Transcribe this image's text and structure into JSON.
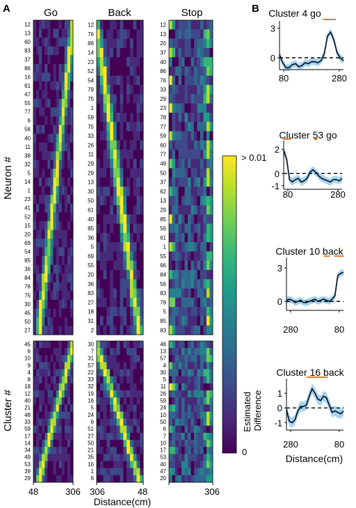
{
  "panel_labels": {
    "a": "A",
    "b": "B"
  },
  "colormap": [
    "#440154",
    "#482878",
    "#3e4989",
    "#31688e",
    "#26828e",
    "#1f9e89",
    "#35b779",
    "#6ece58",
    "#b5de2b",
    "#fde725"
  ],
  "line_color": "#0a1a2e",
  "band_color": "#8cc6e8",
  "sig_color": "#f07818",
  "chart_data": [
    {
      "type": "heatmap",
      "titles": [
        "Go",
        "Back",
        "Stop"
      ],
      "ylabel": "Neuron #",
      "neuron_rows": [
        [
          "12",
          "13",
          "60",
          "83",
          "37",
          "86",
          "16",
          "61",
          "47",
          "55",
          "77",
          "6",
          "56",
          "40",
          "11",
          "38",
          "32",
          "5",
          "14",
          "1",
          "23",
          "41",
          "52",
          "15",
          "20",
          "69",
          "54",
          "85",
          "36",
          "84",
          "78",
          "75",
          "30",
          "45",
          "50",
          "27"
        ],
        [
          "12",
          "76",
          "86",
          "14",
          "23",
          "52",
          "54",
          "79",
          "75",
          "1",
          "59",
          "75",
          "33",
          "26",
          "11",
          "29",
          "29",
          "13",
          "30",
          "50",
          "61",
          "40",
          "85",
          "36",
          "5",
          "69",
          "55",
          "20",
          "36",
          "83",
          "27",
          "18",
          "31",
          "2"
        ],
        [
          "12",
          "13",
          "20",
          "37",
          "40",
          "86",
          "76",
          "33",
          "29",
          "23",
          "78",
          "77",
          "59",
          "60",
          "77",
          "49",
          "50",
          "37",
          "62",
          "13",
          "29",
          "85",
          "56",
          "61",
          "1",
          "55",
          "66",
          "84",
          "56",
          "83",
          "78",
          "5",
          "85",
          "83"
        ]
      ],
      "cluster_ylabel": "Cluster #",
      "cluster_rows": [
        [
          "45",
          "6",
          "10",
          "9",
          "4",
          "8",
          "18",
          "12",
          "40",
          "21",
          "48",
          "33",
          "59",
          "17",
          "14",
          "34",
          "49",
          "53",
          "39",
          "29"
        ],
        [
          "30",
          "7",
          "31",
          "57",
          "22",
          "33",
          "32",
          "19",
          "16",
          "5",
          "24",
          "6",
          "51",
          "27",
          "50",
          "21",
          "35",
          "16",
          "1",
          "6"
        ],
        [
          "48",
          "13",
          "57",
          "4",
          "30",
          "5",
          "11",
          "26",
          "59",
          "24",
          "10",
          "50",
          "6",
          "7",
          "10",
          "17",
          "53",
          "40",
          "47",
          "20"
        ]
      ],
      "x_ticks": [
        [
          "48",
          "306"
        ],
        [
          "306",
          "48"
        ],
        [
          "",
          "306"
        ]
      ],
      "xlabel": "Distance(cm)",
      "colorbar": {
        "max_label": "> 0.01",
        "min_label": "0",
        "label": "Estimated Difference"
      }
    },
    {
      "type": "line",
      "title": "Cluster 4 go",
      "xticks": [
        "80",
        "280"
      ],
      "yticks": [
        "3",
        "0"
      ],
      "ylim": [
        -1.2,
        3.6
      ],
      "x": [
        0,
        0.05,
        0.1,
        0.15,
        0.2,
        0.25,
        0.3,
        0.35,
        0.4,
        0.45,
        0.5,
        0.55,
        0.6,
        0.65,
        0.7,
        0.75,
        0.8,
        0.85,
        0.9,
        0.95,
        1
      ],
      "y": [
        0.3,
        -0.5,
        -1.0,
        -1.0,
        -0.7,
        -0.6,
        -0.9,
        -0.8,
        -0.5,
        -0.6,
        -0.4,
        -0.4,
        -0.5,
        -0.3,
        0.4,
        2.2,
        2.6,
        1.8,
        0.5,
        0,
        -0.3
      ],
      "band": 0.35,
      "sig_segments": [
        [
          0.68,
          0.88
        ]
      ]
    },
    {
      "type": "line",
      "title": "Cluster 53 go",
      "xticks": [
        "80",
        "280"
      ],
      "yticks": [
        "2",
        "0",
        "-1"
      ],
      "ylim": [
        -1.3,
        2.6
      ],
      "x": [
        0,
        0.05,
        0.1,
        0.15,
        0.2,
        0.25,
        0.3,
        0.35,
        0.4,
        0.45,
        0.5,
        0.55,
        0.6,
        0.65,
        0.7,
        0.75,
        0.8,
        0.85,
        0.9,
        0.95,
        1
      ],
      "y": [
        1.9,
        1.2,
        -0.5,
        -0.7,
        -0.5,
        -0.4,
        -0.7,
        -0.6,
        -0.4,
        0.1,
        0.3,
        0.1,
        -0.2,
        -0.4,
        -0.5,
        -0.6,
        -0.7,
        -0.5,
        -0.5,
        -0.6,
        -0.4
      ],
      "band": 0.3,
      "sig_segments": [
        [
          0.0,
          0.12
        ],
        [
          0.52,
          0.58
        ]
      ]
    },
    {
      "type": "line",
      "title": "Cluster 10 back",
      "xticks": [
        "280",
        "80"
      ],
      "yticks": [
        "3",
        "0"
      ],
      "ylim": [
        -0.8,
        3.8
      ],
      "x": [
        0,
        0.05,
        0.1,
        0.15,
        0.2,
        0.25,
        0.3,
        0.35,
        0.4,
        0.45,
        0.5,
        0.55,
        0.6,
        0.65,
        0.7,
        0.75,
        0.8,
        0.85,
        0.9,
        0.95,
        1
      ],
      "y": [
        0.1,
        0.2,
        0.1,
        -0.1,
        0,
        0.1,
        -0.1,
        -0.1,
        0,
        0.1,
        0.2,
        0,
        0.1,
        0.2,
        0.1,
        0,
        0.2,
        0.5,
        2.3,
        2.5,
        2.6
      ],
      "band": 0.3,
      "sig_segments": [
        [
          0.66,
          0.76
        ],
        [
          0.84,
          1.0
        ]
      ]
    },
    {
      "type": "line",
      "title": "Cluster 16 back",
      "xticks": [
        "280",
        "80"
      ],
      "yticks": [
        "1",
        "0",
        "-1"
      ],
      "ylim": [
        -1.5,
        1.9
      ],
      "xlabel": "Distance(cm)",
      "x": [
        0,
        0.05,
        0.1,
        0.15,
        0.2,
        0.25,
        0.3,
        0.35,
        0.4,
        0.45,
        0.5,
        0.55,
        0.6,
        0.65,
        0.7,
        0.75,
        0.8,
        0.85,
        0.9,
        0.95,
        1
      ],
      "y": [
        -0.1,
        -0.9,
        -1.0,
        -0.8,
        -0.2,
        0.1,
        0.1,
        0.2,
        0.8,
        1.3,
        1.0,
        0.6,
        0.5,
        0.8,
        0.7,
        0.2,
        -0.3,
        -0.2,
        -0.3,
        -0.4,
        -0.2
      ],
      "band": 0.35,
      "sig_segments": [
        [
          0.35,
          0.72
        ]
      ]
    }
  ]
}
